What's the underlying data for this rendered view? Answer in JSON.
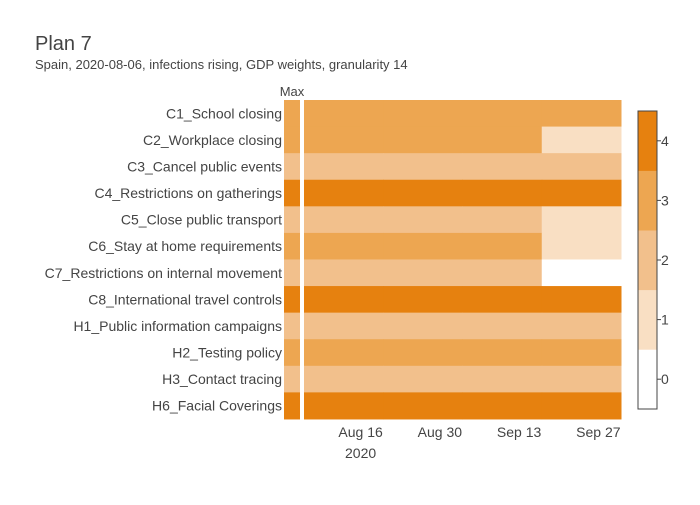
{
  "chart_data": {
    "type": "heatmap",
    "title": "Plan 7",
    "subtitle": "Spain, 2020-08-06, infections rising, GDP weights, granularity 14",
    "max_column_label": "Max",
    "rows": [
      "C1_School closing",
      "C2_Workplace closing",
      "C3_Cancel public events",
      "C4_Restrictions on gatherings",
      "C5_Close public transport",
      "C6_Stay at home requirements",
      "C7_Restrictions on internal movement",
      "C8_International travel controls",
      "H1_Public information campaigns",
      "H2_Testing policy",
      "H3_Contact tracing",
      "H6_Facial Coverings"
    ],
    "max_values": [
      3,
      3,
      2,
      4,
      2,
      3,
      2,
      4,
      2,
      3,
      2,
      4
    ],
    "periods": [
      {
        "start": "2020-08-06",
        "end": "2020-08-20"
      },
      {
        "start": "2020-08-20",
        "end": "2020-09-03"
      },
      {
        "start": "2020-09-03",
        "end": "2020-09-17"
      },
      {
        "start": "2020-09-17",
        "end": "2020-10-01"
      }
    ],
    "values": [
      [
        3,
        3,
        3,
        3
      ],
      [
        3,
        3,
        3,
        1
      ],
      [
        2,
        2,
        2,
        2
      ],
      [
        4,
        4,
        4,
        4
      ],
      [
        2,
        2,
        2,
        1
      ],
      [
        3,
        3,
        3,
        1
      ],
      [
        2,
        2,
        2,
        0
      ],
      [
        4,
        4,
        4,
        4
      ],
      [
        2,
        2,
        2,
        2
      ],
      [
        3,
        3,
        3,
        3
      ],
      [
        2,
        2,
        2,
        2
      ],
      [
        4,
        4,
        4,
        4
      ]
    ],
    "x_ticks": [
      {
        "date": "2020-08-16",
        "label": "Aug 16",
        "year": "2020"
      },
      {
        "date": "2020-08-30",
        "label": "Aug 30"
      },
      {
        "date": "2020-09-13",
        "label": "Sep 13"
      },
      {
        "date": "2020-09-27",
        "label": "Sep 27"
      }
    ],
    "colorscale": {
      "levels": [
        0,
        1,
        2,
        3,
        4
      ],
      "colors": [
        "#ffffff",
        "#f9dfc3",
        "#f2c08c",
        "#eda651",
        "#e6810f"
      ],
      "tick_labels": [
        "0",
        "1",
        "2",
        "3",
        "4"
      ]
    }
  }
}
